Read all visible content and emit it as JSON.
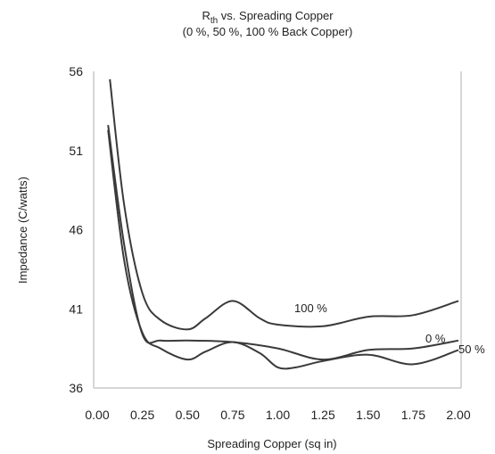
{
  "chart_data": {
    "type": "line",
    "title_main": "R",
    "title_sub": "th",
    "title_rest": " vs. Spreading Copper",
    "title_line2": "(0 %, 50 %, 100 % Back Copper)",
    "xlabel": "Spreading Copper (sq in)",
    "ylabel": "Impedance (C/watts)",
    "xlim": [
      0.0,
      2.0
    ],
    "ylim": [
      36,
      56
    ],
    "x_ticks": [
      "0.00",
      "0.25",
      "0.50",
      "0.75",
      "1.00",
      "1.25",
      "1.50",
      "1.75",
      "2.00"
    ],
    "y_ticks": [
      "36",
      "41",
      "46",
      "51",
      "56"
    ],
    "grid": false,
    "series": [
      {
        "name": "100 %",
        "x": [
          0.07,
          0.15,
          0.25,
          0.35,
          0.5,
          0.6,
          0.75,
          0.9,
          1.0,
          1.25,
          1.5,
          1.75,
          2.0
        ],
        "y": [
          55.5,
          47.5,
          42.0,
          40.3,
          39.7,
          40.4,
          41.5,
          40.4,
          40.0,
          39.9,
          40.5,
          40.6,
          41.5
        ]
      },
      {
        "name": "0 %",
        "x": [
          0.06,
          0.15,
          0.25,
          0.35,
          0.5,
          0.75,
          1.0,
          1.25,
          1.5,
          1.75,
          2.0
        ],
        "y": [
          52.6,
          45.0,
          39.4,
          39.0,
          39.0,
          38.9,
          38.5,
          37.8,
          38.4,
          38.5,
          39.0
        ]
      },
      {
        "name": "50 %",
        "x": [
          0.06,
          0.15,
          0.25,
          0.35,
          0.5,
          0.6,
          0.75,
          0.9,
          1.0,
          1.1,
          1.25,
          1.5,
          1.75,
          2.0
        ],
        "y": [
          52.3,
          44.0,
          39.5,
          38.5,
          37.8,
          38.3,
          38.9,
          38.2,
          37.3,
          37.3,
          37.7,
          38.1,
          37.5,
          38.4
        ]
      }
    ],
    "curve_labels": [
      "100 %",
      "0 %",
      "50 %"
    ]
  }
}
